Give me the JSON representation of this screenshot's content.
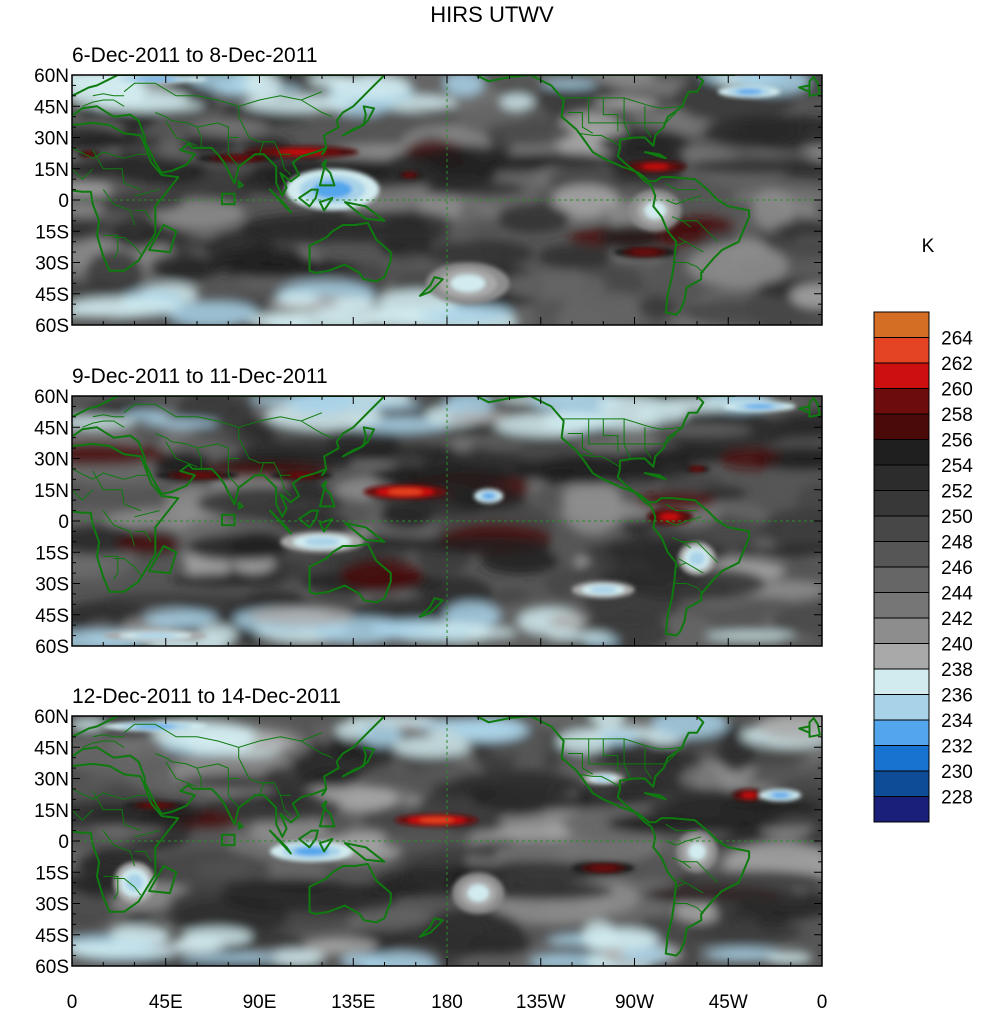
{
  "chart_data": {
    "type": "heatmap",
    "title": "HIRS UTWV",
    "colorbar": {
      "units": "K",
      "levels": [
        228,
        230,
        232,
        234,
        236,
        238,
        240,
        242,
        244,
        246,
        248,
        250,
        252,
        254,
        256,
        258,
        260,
        262,
        264
      ],
      "colors": [
        "#1a1f7a",
        "#0e4c97",
        "#1872cf",
        "#53a6ec",
        "#a8d2e8",
        "#d1ebef",
        "#a9a9a9",
        "#8d8d8d",
        "#767676",
        "#666666",
        "#565656",
        "#474747",
        "#383838",
        "#2c2c2c",
        "#1f1f1f",
        "#4a0a0a",
        "#6c0c0c",
        "#cc0f0f",
        "#e54424",
        "#d46e25"
      ]
    },
    "lat_ticks": [
      "60N",
      "45N",
      "30N",
      "15N",
      "0",
      "15S",
      "30S",
      "45S",
      "60S"
    ],
    "lon_ticks": [
      "0",
      "45E",
      "90E",
      "135E",
      "180",
      "135W",
      "90W",
      "45W",
      "0"
    ],
    "lat_range": [
      -60,
      60
    ],
    "lon_range": [
      0,
      360
    ],
    "panels": [
      {
        "label": "6-Dec-2011 to 8-Dec-2011",
        "features": [
          {
            "kind": "warm",
            "lon": 110,
            "lat": 23,
            "w": 55,
            "h": 6,
            "value": 260
          },
          {
            "kind": "warm",
            "lon": 80,
            "lat": 20,
            "w": 40,
            "h": 5,
            "value": 258
          },
          {
            "kind": "warm",
            "lon": 280,
            "lat": 16,
            "w": 30,
            "h": 6,
            "value": 260
          },
          {
            "kind": "warm",
            "lon": 275,
            "lat": -25,
            "w": 30,
            "h": 6,
            "value": 258
          },
          {
            "kind": "warm",
            "lon": 8,
            "lat": 22,
            "w": 10,
            "h": 4,
            "value": 258
          },
          {
            "kind": "warm",
            "lon": 162,
            "lat": 12,
            "w": 12,
            "h": 4,
            "value": 258
          },
          {
            "kind": "dry",
            "lon": 125,
            "lat": 5,
            "w": 45,
            "h": 20,
            "value": 232
          },
          {
            "kind": "dry",
            "lon": 40,
            "lat": 58,
            "w": 50,
            "h": 4,
            "value": 232
          },
          {
            "kind": "dry",
            "lon": 325,
            "lat": 52,
            "w": 30,
            "h": 6,
            "value": 232
          },
          {
            "kind": "dry",
            "lon": 190,
            "lat": -40,
            "w": 40,
            "h": 20,
            "value": 236
          },
          {
            "kind": "dry",
            "lon": 280,
            "lat": -5,
            "w": 25,
            "h": 20,
            "value": 236
          }
        ]
      },
      {
        "label": "9-Dec-2011 to 11-Dec-2011",
        "features": [
          {
            "kind": "warm",
            "lon": 160,
            "lat": 14,
            "w": 40,
            "h": 7,
            "value": 262
          },
          {
            "kind": "warm",
            "lon": 60,
            "lat": 22,
            "w": 40,
            "h": 5,
            "value": 258
          },
          {
            "kind": "warm",
            "lon": 110,
            "lat": 22,
            "w": 30,
            "h": 5,
            "value": 258
          },
          {
            "kind": "warm",
            "lon": 287,
            "lat": 2,
            "w": 22,
            "h": 8,
            "value": 260
          },
          {
            "kind": "warm",
            "lon": 300,
            "lat": 25,
            "w": 12,
            "h": 4,
            "value": 258
          },
          {
            "kind": "dry",
            "lon": 200,
            "lat": 12,
            "w": 14,
            "h": 7,
            "value": 232
          },
          {
            "kind": "dry",
            "lon": 255,
            "lat": -33,
            "w": 30,
            "h": 8,
            "value": 234
          },
          {
            "kind": "dry",
            "lon": 120,
            "lat": -10,
            "w": 40,
            "h": 10,
            "value": 234
          },
          {
            "kind": "dry",
            "lon": 40,
            "lat": -55,
            "w": 50,
            "h": 5,
            "value": 234
          },
          {
            "kind": "dry",
            "lon": 330,
            "lat": 55,
            "w": 35,
            "h": 5,
            "value": 232
          },
          {
            "kind": "dry",
            "lon": 300,
            "lat": -18,
            "w": 18,
            "h": 16,
            "value": 234
          }
        ]
      },
      {
        "label": "12-Dec-2011 to 14-Dec-2011",
        "features": [
          {
            "kind": "warm",
            "lon": 175,
            "lat": 10,
            "w": 40,
            "h": 6,
            "value": 262
          },
          {
            "kind": "warm",
            "lon": 255,
            "lat": -13,
            "w": 30,
            "h": 6,
            "value": 258
          },
          {
            "kind": "warm",
            "lon": 325,
            "lat": 22,
            "w": 16,
            "h": 6,
            "value": 260
          },
          {
            "kind": "warm",
            "lon": 40,
            "lat": 17,
            "w": 30,
            "h": 4,
            "value": 258
          },
          {
            "kind": "dry",
            "lon": 115,
            "lat": -5,
            "w": 40,
            "h": 10,
            "value": 232
          },
          {
            "kind": "dry",
            "lon": 195,
            "lat": -25,
            "w": 25,
            "h": 20,
            "value": 236
          },
          {
            "kind": "dry",
            "lon": 30,
            "lat": -20,
            "w": 20,
            "h": 20,
            "value": 234
          },
          {
            "kind": "dry",
            "lon": 40,
            "lat": 55,
            "w": 50,
            "h": 5,
            "value": 232
          },
          {
            "kind": "dry",
            "lon": 340,
            "lat": 22,
            "w": 20,
            "h": 6,
            "value": 232
          },
          {
            "kind": "dry",
            "lon": 255,
            "lat": 30,
            "w": 20,
            "h": 6,
            "value": 234
          },
          {
            "kind": "dry",
            "lon": 300,
            "lat": -5,
            "w": 20,
            "h": 20,
            "value": 236
          }
        ]
      }
    ]
  }
}
